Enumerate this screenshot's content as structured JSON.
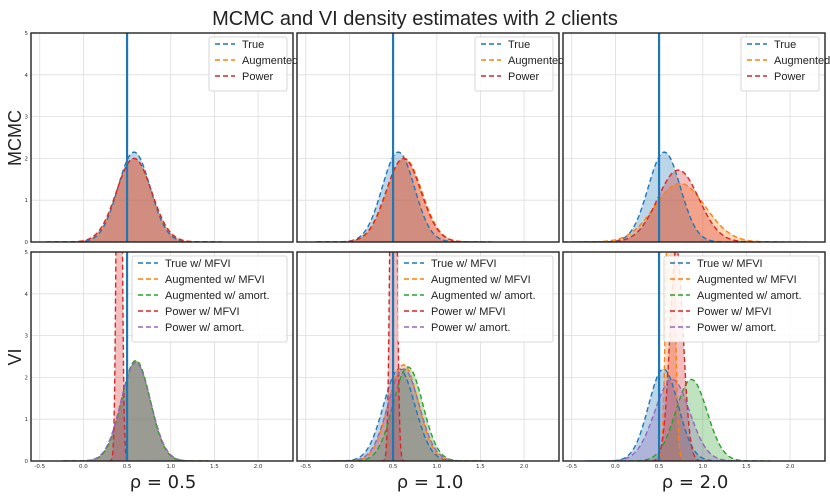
{
  "title": "MCMC and VI density estimates with 2 clients",
  "row_labels": [
    "MCMC",
    "VI"
  ],
  "col_labels": [
    "ρ = 0.5",
    "ρ = 1.0",
    "ρ = 2.0"
  ],
  "colors": {
    "True": "#1f77b4",
    "Augmented": "#ff7f0e",
    "Power": "#d62728",
    "Augmented w/ amort.": "#2ca02c",
    "Power w/ amort.": "#9467bd",
    "axis": "#222222",
    "grid": "#dddddd"
  },
  "chart_data": [
    {
      "type": "area",
      "row": 0,
      "col": 0,
      "xlim": [
        -0.6,
        2.4
      ],
      "ylim": [
        0,
        5
      ],
      "xticks": [
        "-0.5",
        "0.0",
        "0.5",
        "1.0",
        "1.5",
        "2.0"
      ],
      "yticks": [
        "0",
        "1",
        "2",
        "3",
        "4",
        "5"
      ],
      "grid": true,
      "vline": 0.5,
      "legend": "top-right",
      "series": [
        {
          "name": "True",
          "color_key": "True",
          "dist": "normal",
          "mean": 0.58,
          "sd": 0.185,
          "peak": 2.15
        },
        {
          "name": "Augmented",
          "color_key": "Augmented",
          "dist": "normal",
          "mean": 0.58,
          "sd": 0.2,
          "peak": 2.0
        },
        {
          "name": "Power",
          "color_key": "Power",
          "dist": "normal",
          "mean": 0.58,
          "sd": 0.2,
          "peak": 2.0
        }
      ]
    },
    {
      "type": "area",
      "row": 0,
      "col": 1,
      "xlim": [
        -0.6,
        2.4
      ],
      "ylim": [
        0,
        5
      ],
      "xticks": [
        "-0.5",
        "0.0",
        "0.5",
        "1.0",
        "1.5",
        "2.0"
      ],
      "yticks": [
        "0",
        "1",
        "2",
        "3",
        "4",
        "5"
      ],
      "grid": true,
      "vline": 0.5,
      "legend": "top-right",
      "series": [
        {
          "name": "True",
          "color_key": "True",
          "dist": "normal",
          "mean": 0.56,
          "sd": 0.185,
          "peak": 2.15
        },
        {
          "name": "Augmented",
          "color_key": "Augmented",
          "dist": "normal",
          "mean": 0.63,
          "sd": 0.2,
          "peak": 2.0
        },
        {
          "name": "Power",
          "color_key": "Power",
          "dist": "normal",
          "mean": 0.62,
          "sd": 0.2,
          "peak": 2.0
        }
      ]
    },
    {
      "type": "area",
      "row": 0,
      "col": 2,
      "xlim": [
        -0.6,
        2.4
      ],
      "ylim": [
        0,
        5
      ],
      "xticks": [
        "-0.5",
        "0.0",
        "0.5",
        "1.0",
        "1.5",
        "2.0"
      ],
      "yticks": [
        "0",
        "1",
        "2",
        "3",
        "4",
        "5"
      ],
      "grid": true,
      "vline": 0.5,
      "legend": "top-right",
      "series": [
        {
          "name": "True",
          "color_key": "True",
          "dist": "normal",
          "mean": 0.56,
          "sd": 0.185,
          "peak": 2.15
        },
        {
          "name": "Augmented",
          "color_key": "Augmented",
          "dist": "normal",
          "mean": 0.74,
          "sd": 0.29,
          "peak": 1.4
        },
        {
          "name": "Power",
          "color_key": "Power",
          "dist": "normal",
          "mean": 0.72,
          "sd": 0.235,
          "peak": 1.72
        }
      ]
    },
    {
      "type": "area",
      "row": 1,
      "col": 0,
      "xlim": [
        -0.6,
        2.4
      ],
      "ylim": [
        0,
        5
      ],
      "xticks": [
        "-0.5",
        "0.0",
        "0.5",
        "1.0",
        "1.5",
        "2.0"
      ],
      "yticks": [
        "0",
        "1",
        "2",
        "3",
        "4",
        "5"
      ],
      "grid": true,
      "vline": 0.5,
      "legend": "top-right",
      "series": [
        {
          "name": "True w/ MFVI",
          "color_key": "True",
          "dist": "normal",
          "mean": 0.6,
          "sd": 0.165,
          "peak": 2.4
        },
        {
          "name": "Augmented w/ MFVI",
          "color_key": "Augmented",
          "dist": "normal",
          "mean": 0.6,
          "sd": 0.165,
          "peak": 2.4
        },
        {
          "name": "Augmented w/ amort.",
          "color_key": "Augmented w/ amort.",
          "dist": "normal",
          "mean": 0.6,
          "sd": 0.165,
          "peak": 2.4
        },
        {
          "name": "Power w/ MFVI",
          "color_key": "Power",
          "dist": "normal",
          "mean": 0.41,
          "sd": 0.025,
          "peak": 16
        },
        {
          "name": "Power w/ amort.",
          "color_key": "Power w/ amort.",
          "dist": "normal",
          "mean": 0.6,
          "sd": 0.17,
          "peak": 2.35
        }
      ]
    },
    {
      "type": "area",
      "row": 1,
      "col": 1,
      "xlim": [
        -0.6,
        2.4
      ],
      "ylim": [
        0,
        5
      ],
      "xticks": [
        "-0.5",
        "0.0",
        "0.5",
        "1.0",
        "1.5",
        "2.0"
      ],
      "yticks": [
        "0",
        "1",
        "2",
        "3",
        "4",
        "5"
      ],
      "grid": true,
      "vline": 0.5,
      "legend": "top-right",
      "series": [
        {
          "name": "True w/ MFVI",
          "color_key": "True",
          "dist": "normal",
          "mean": 0.57,
          "sd": 0.18,
          "peak": 2.2
        },
        {
          "name": "Augmented w/ MFVI",
          "color_key": "Augmented",
          "dist": "normal",
          "mean": 0.62,
          "sd": 0.17,
          "peak": 2.3
        },
        {
          "name": "Augmented w/ amort.",
          "color_key": "Augmented w/ amort.",
          "dist": "normal",
          "mean": 0.67,
          "sd": 0.17,
          "peak": 2.25
        },
        {
          "name": "Power w/ MFVI",
          "color_key": "Power",
          "dist": "normal",
          "mean": 0.505,
          "sd": 0.03,
          "peak": 15
        },
        {
          "name": "Power w/ amort.",
          "color_key": "Power w/ amort.",
          "dist": "normal",
          "mean": 0.62,
          "sd": 0.18,
          "peak": 2.2
        }
      ]
    },
    {
      "type": "area",
      "row": 1,
      "col": 2,
      "xlim": [
        -0.6,
        2.4
      ],
      "ylim": [
        0,
        5
      ],
      "xticks": [
        "-0.5",
        "0.0",
        "0.5",
        "1.0",
        "1.5",
        "2.0"
      ],
      "yticks": [
        "0",
        "1",
        "2",
        "3",
        "4",
        "5"
      ],
      "grid": true,
      "vline": 0.5,
      "legend": "top-right",
      "series": [
        {
          "name": "True w/ MFVI",
          "color_key": "True",
          "dist": "normal",
          "mean": 0.55,
          "sd": 0.17,
          "peak": 2.2
        },
        {
          "name": "Augmented w/ MFVI",
          "color_key": "Augmented",
          "dist": "normal",
          "mean": 0.63,
          "sd": 0.04,
          "peak": 10
        },
        {
          "name": "Augmented w/ amort.",
          "color_key": "Augmented w/ amort.",
          "dist": "normal",
          "mean": 0.87,
          "sd": 0.18,
          "peak": 1.95
        },
        {
          "name": "Power w/ MFVI",
          "color_key": "Power",
          "dist": "normal",
          "mean": 0.7,
          "sd": 0.075,
          "peak": 5.1
        },
        {
          "name": "Power w/ amort.",
          "color_key": "Power w/ amort.",
          "dist": "normal",
          "mean": 0.65,
          "sd": 0.2,
          "peak": 1.95
        }
      ]
    }
  ]
}
